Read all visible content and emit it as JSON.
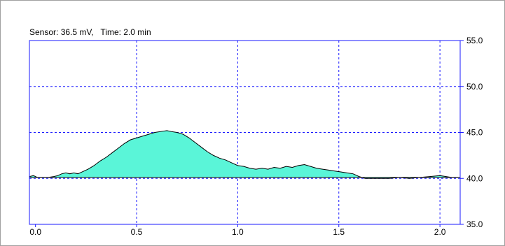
{
  "readout": {
    "text": "Sensor: 36.5 mV,   Time: 2.0 min"
  },
  "colors": {
    "plot_border": "#1a1aff",
    "grid": "#1a1aff",
    "fill": "#5af5d8",
    "line": "#000000",
    "baseline": "#000000"
  },
  "chart_data": {
    "type": "area",
    "title": "",
    "xlabel": "",
    "ylabel": "",
    "xlim": [
      -0.03,
      2.1
    ],
    "ylim": [
      35.0,
      55.0
    ],
    "x_ticks": [
      0.0,
      0.5,
      1.0,
      1.5,
      2.0
    ],
    "x_tick_labels": [
      "0.0",
      "0.5",
      "1.0",
      "1.5",
      "2.0"
    ],
    "y_ticks": [
      35.0,
      40.0,
      45.0,
      50.0,
      55.0
    ],
    "y_tick_labels": [
      "35.0",
      "40.0",
      "45.0",
      "50.0",
      "55.0"
    ],
    "grid": true,
    "y_axis_side": "right",
    "baseline": 40.1,
    "series": [
      {
        "x": [
          -0.03,
          -0.01,
          0.01,
          0.03,
          0.06,
          0.09,
          0.11,
          0.13,
          0.15,
          0.17,
          0.19,
          0.21,
          0.23,
          0.26,
          0.29,
          0.32,
          0.35,
          0.38,
          0.41,
          0.44,
          0.47,
          0.5,
          0.53,
          0.56,
          0.59,
          0.62,
          0.65,
          0.67,
          0.7,
          0.73,
          0.76,
          0.79,
          0.82,
          0.85,
          0.88,
          0.91,
          0.94,
          0.97,
          1.0,
          1.03,
          1.06,
          1.09,
          1.12,
          1.15,
          1.18,
          1.21,
          1.24,
          1.27,
          1.3,
          1.33,
          1.36,
          1.39,
          1.42,
          1.45,
          1.48,
          1.51,
          1.54,
          1.57,
          1.6,
          1.63,
          1.66,
          1.7,
          1.75,
          1.8,
          1.85,
          1.9,
          1.95,
          2.0,
          2.03,
          2.06,
          2.09
        ],
        "y": [
          40.2,
          40.3,
          40.1,
          40.1,
          40.1,
          40.2,
          40.3,
          40.5,
          40.6,
          40.5,
          40.6,
          40.5,
          40.7,
          41.0,
          41.4,
          41.9,
          42.3,
          42.8,
          43.3,
          43.8,
          44.2,
          44.4,
          44.6,
          44.8,
          45.0,
          45.1,
          45.2,
          45.1,
          45.0,
          44.8,
          44.4,
          43.9,
          43.4,
          42.9,
          42.5,
          42.2,
          42.0,
          41.7,
          41.4,
          41.3,
          41.1,
          41.0,
          41.1,
          41.0,
          41.2,
          41.1,
          41.3,
          41.2,
          41.4,
          41.5,
          41.3,
          41.1,
          41.0,
          40.9,
          40.8,
          40.7,
          40.6,
          40.5,
          40.2,
          40.0,
          40.0,
          40.0,
          40.0,
          40.1,
          40.0,
          40.1,
          40.2,
          40.3,
          40.2,
          40.1,
          40.1
        ]
      }
    ]
  }
}
